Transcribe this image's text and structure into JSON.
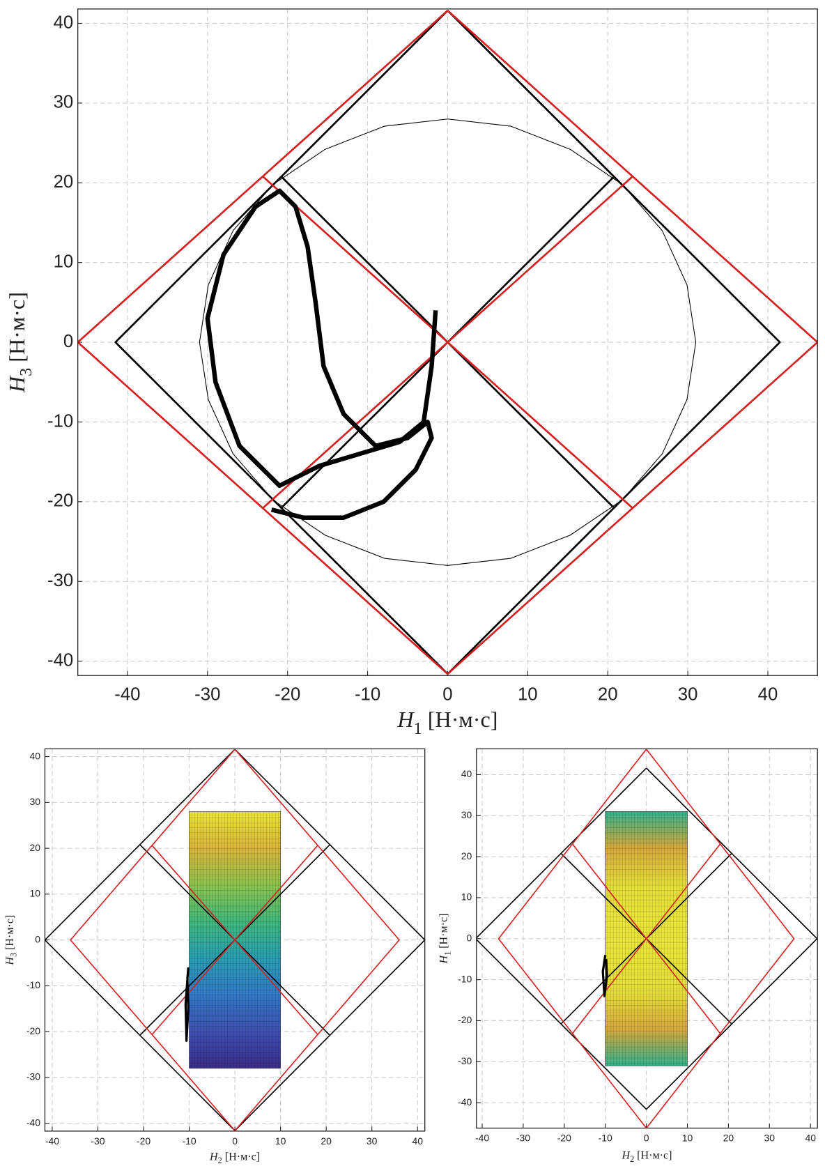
{
  "chart_data": [
    {
      "type": "line",
      "xlabel": {
        "symbol": "H",
        "subscript": "1",
        "unit": "[Н·м·с]"
      },
      "ylabel": {
        "symbol": "H",
        "subscript": "3",
        "unit": "[Н·м·с]"
      },
      "xlim": [
        -46.2,
        46.2
      ],
      "ylim": [
        -41.8,
        41.8
      ],
      "xticks": [
        -40,
        -30,
        -20,
        -10,
        0,
        10,
        20,
        30,
        40
      ],
      "yticks": [
        -40,
        -30,
        -20,
        -10,
        0,
        10,
        20,
        30,
        40
      ],
      "grid": true,
      "series": [
        {
          "color": "#000000",
          "width": 1,
          "x": [
            0,
            7.9,
            15.3,
            21.8,
            26.8,
            29.9,
            31,
            29.9,
            26.8,
            21.8,
            15.3,
            7.9,
            0,
            -7.9,
            -15.3,
            -21.8,
            -26.8,
            -29.9,
            -31,
            -29.9,
            -26.8,
            -21.8,
            -15.3,
            -7.9,
            0
          ],
          "y": [
            28,
            27.1,
            24.2,
            19.8,
            14,
            7.2,
            0,
            -7.2,
            -14,
            -19.8,
            -24.2,
            -27.1,
            -28,
            -27.1,
            -24.2,
            -19.8,
            -14,
            -7.2,
            0,
            7.2,
            14,
            19.8,
            24.2,
            27.1,
            28
          ]
        },
        {
          "color": "#000000",
          "width": 2.5,
          "x": [
            0,
            41.5,
            0,
            -41.5,
            0
          ],
          "y": [
            41.6,
            0,
            -41.6,
            0,
            41.6
          ]
        },
        {
          "color": "#000000",
          "width": 2.5,
          "x": [
            -20.7,
            20.7
          ],
          "y": [
            20.7,
            -20.7
          ]
        },
        {
          "color": "#000000",
          "width": 2.5,
          "x": [
            20.7,
            -20.7
          ],
          "y": [
            20.7,
            -20.7
          ]
        },
        {
          "color": "#d42020",
          "width": 2.5,
          "x": [
            0,
            46.2,
            0,
            -46.2,
            0
          ],
          "y": [
            41.6,
            0,
            -41.6,
            0,
            41.6
          ]
        },
        {
          "color": "#d42020",
          "width": 2.5,
          "x": [
            -23.1,
            23.1
          ],
          "y": [
            20.8,
            -20.8
          ]
        },
        {
          "color": "#d42020",
          "width": 2.5,
          "x": [
            23.1,
            -23.1
          ],
          "y": [
            20.8,
            -20.8
          ]
        },
        {
          "color": "#000000",
          "width": 6,
          "x": [
            -1.5,
            -2,
            -3,
            -6,
            -11,
            -16,
            -21,
            -26,
            -29,
            -30,
            -28,
            -24,
            -21,
            -19,
            -17.5,
            -16.5,
            -15.5,
            -13,
            -9,
            -5,
            -2.5,
            -2,
            -4,
            -8,
            -13,
            -18,
            -22
          ],
          "y": [
            4,
            -3,
            -10,
            -12.5,
            -14,
            -15.5,
            -18,
            -13,
            -5,
            3,
            11,
            17,
            19,
            17,
            12,
            5,
            -3,
            -9,
            -13,
            -12,
            -10,
            -12,
            -16,
            -20,
            -22,
            -22,
            -21
          ]
        }
      ]
    },
    {
      "type": "line",
      "xlabel": {
        "symbol": "H",
        "subscript": "2",
        "unit": "[Н·м·с]"
      },
      "ylabel": {
        "symbol": "H",
        "subscript": "3",
        "unit": "[Н·м·с]"
      },
      "xlim": [
        -41.6,
        41.6
      ],
      "ylim": [
        -41.7,
        41.7
      ],
      "xticks": [
        -40,
        -30,
        -20,
        -10,
        0,
        10,
        20,
        30,
        40
      ],
      "yticks": [
        -40,
        -30,
        -20,
        -10,
        0,
        10,
        20,
        30,
        40
      ],
      "grid": true,
      "series": [
        {
          "type": "surface",
          "x": [
            -10,
            10
          ],
          "y": [
            -28,
            28
          ],
          "colors": [
            "#e8e436",
            "#d8b43c",
            "#8cc24e",
            "#3fb77a",
            "#2a9db2",
            "#3378c4",
            "#3f4fb0",
            "#3a2c86"
          ]
        },
        {
          "color": "#000000",
          "width": 1.5,
          "x": [
            0,
            41.6,
            0,
            -41.6,
            0
          ],
          "y": [
            41.6,
            0,
            -41.6,
            0,
            41.6
          ]
        },
        {
          "color": "#000000",
          "width": 1.5,
          "x": [
            -20.7,
            20.7
          ],
          "y": [
            20.7,
            -20.7
          ]
        },
        {
          "color": "#000000",
          "width": 1.5,
          "x": [
            20.7,
            -20.7
          ],
          "y": [
            20.7,
            -20.7
          ]
        },
        {
          "color": "#d42020",
          "width": 1.5,
          "x": [
            0,
            36,
            0,
            -36,
            0
          ],
          "y": [
            41.6,
            0,
            -41.6,
            0,
            41.6
          ]
        },
        {
          "color": "#d42020",
          "width": 1.5,
          "x": [
            -18.2,
            18.2
          ],
          "y": [
            20.7,
            -20.7
          ]
        },
        {
          "color": "#d42020",
          "width": 1.5,
          "x": [
            18.2,
            -18.2
          ],
          "y": [
            20.7,
            -20.7
          ]
        },
        {
          "color": "#000000",
          "width": 3,
          "x": [
            -10.2,
            -10.8,
            -10.6,
            -10.2,
            -10.4
          ],
          "y": [
            -6,
            -14,
            -22,
            -15,
            -8
          ]
        }
      ]
    },
    {
      "type": "line",
      "xlabel": {
        "symbol": "H",
        "subscript": "2",
        "unit": "[Н·м·с]"
      },
      "ylabel": {
        "symbol": "H",
        "subscript": "1",
        "unit": "[Н·м·с]"
      },
      "xlim": [
        -41.4,
        41.7
      ],
      "ylim": [
        -46.2,
        46.3
      ],
      "xticks": [
        -40,
        -30,
        -20,
        -10,
        0,
        10,
        20,
        30,
        40
      ],
      "yticks": [
        -40,
        -30,
        -20,
        -10,
        0,
        10,
        20,
        30,
        40
      ],
      "grid": true,
      "series": [
        {
          "type": "surface",
          "x": [
            -10,
            10
          ],
          "y": [
            -31,
            31
          ],
          "colors": [
            "#35b08c",
            "#d4a83c",
            "#e4dc3a",
            "#e8e43a",
            "#e8e43a",
            "#e4dc3a",
            "#d4a83c",
            "#35b08c"
          ]
        },
        {
          "color": "#000000",
          "width": 1.5,
          "x": [
            0,
            41.6,
            0,
            -41.6,
            0
          ],
          "y": [
            41.6,
            0,
            -41.6,
            0,
            41.6
          ]
        },
        {
          "color": "#000000",
          "width": 1.5,
          "x": [
            -20.7,
            20.7
          ],
          "y": [
            20.7,
            -20.7
          ]
        },
        {
          "color": "#000000",
          "width": 1.5,
          "x": [
            20.7,
            -20.7
          ],
          "y": [
            20.7,
            -20.7
          ]
        },
        {
          "color": "#d42020",
          "width": 1.5,
          "x": [
            0,
            36,
            0,
            -36,
            0
          ],
          "y": [
            46.2,
            0,
            -46.2,
            0,
            46.2
          ]
        },
        {
          "color": "#d42020",
          "width": 1.5,
          "x": [
            -18,
            18
          ],
          "y": [
            23.1,
            -23.1
          ]
        },
        {
          "color": "#d42020",
          "width": 1.5,
          "x": [
            18,
            -18
          ],
          "y": [
            23.1,
            -23.1
          ]
        },
        {
          "color": "#000000",
          "width": 3,
          "x": [
            -10,
            -10.6,
            -10.2,
            -9.6,
            -9.8
          ],
          "y": [
            -4,
            -8,
            -14,
            -9,
            -5
          ]
        }
      ]
    }
  ]
}
